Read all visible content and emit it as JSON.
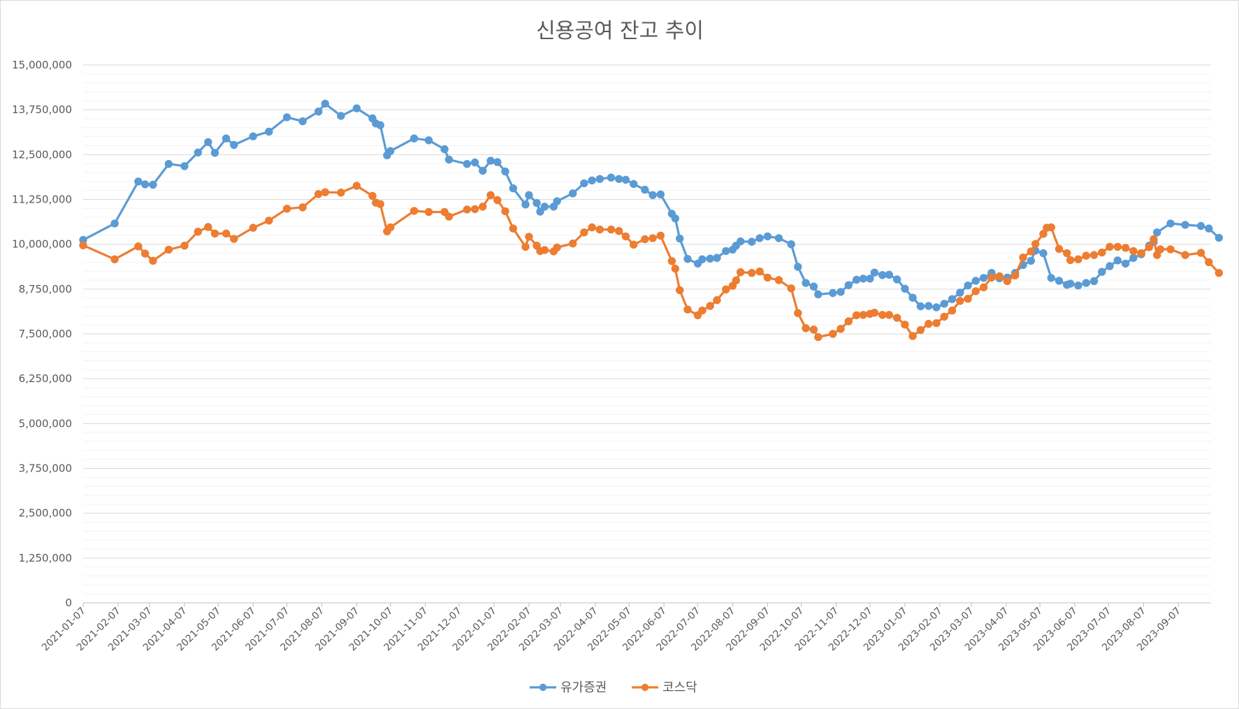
{
  "chart_data": {
    "type": "line",
    "title": "신용공여 잔고 추이",
    "xlabel": "",
    "ylabel": "",
    "ylim": [
      0,
      15000000
    ],
    "y_ticks": [
      0,
      1250000,
      2500000,
      3750000,
      5000000,
      6250000,
      7500000,
      8750000,
      10000000,
      11250000,
      12500000,
      13750000,
      15000000
    ],
    "y_tick_labels": [
      "0",
      "1,250,000",
      "2,500,000",
      "3,750,000",
      "5,000,000",
      "6,250,000",
      "7,500,000",
      "8,750,000",
      "10,000,000",
      "11,250,000",
      "12,500,000",
      "13,750,000",
      "15,000,000"
    ],
    "x_range": [
      "2021-01-07",
      "2023-10-06"
    ],
    "x_tick_labels": [
      "2021-01-07",
      "2021-02-07",
      "2021-03-07",
      "2021-04-07",
      "2021-05-07",
      "2021-06-07",
      "2021-07-07",
      "2021-08-07",
      "2021-09-07",
      "2021-10-07",
      "2021-11-07",
      "2021-12-07",
      "2022-01-07",
      "2022-02-07",
      "2022-03-07",
      "2022-04-07",
      "2022-05-07",
      "2022-06-07",
      "2022-07-07",
      "2022-08-07",
      "2022-09-07",
      "2022-10-07",
      "2022-11-07",
      "2022-12-07",
      "2023-01-07",
      "2023-02-07",
      "2023-03-07",
      "2023-04-07",
      "2023-05-07",
      "2023-06-07",
      "2023-07-07",
      "2023-08-07",
      "2023-09-07"
    ],
    "grid": "horizontal",
    "legend_position": "bottom",
    "series": [
      {
        "name": "유가증권",
        "color": "#5b9bd5",
        "points": [
          [
            "2021-01-07",
            10120000
          ],
          [
            "2021-02-04",
            10580000
          ],
          [
            "2021-02-25",
            11750000
          ],
          [
            "2021-03-03",
            11670000
          ],
          [
            "2021-03-10",
            11660000
          ],
          [
            "2021-03-24",
            12240000
          ],
          [
            "2021-04-07",
            12180000
          ],
          [
            "2021-04-19",
            12560000
          ],
          [
            "2021-04-28",
            12850000
          ],
          [
            "2021-05-04",
            12550000
          ],
          [
            "2021-05-14",
            12950000
          ],
          [
            "2021-05-21",
            12770000
          ],
          [
            "2021-06-07",
            13010000
          ],
          [
            "2021-06-21",
            13140000
          ],
          [
            "2021-07-07",
            13540000
          ],
          [
            "2021-07-21",
            13430000
          ],
          [
            "2021-08-04",
            13700000
          ],
          [
            "2021-08-10",
            13920000
          ],
          [
            "2021-08-24",
            13580000
          ],
          [
            "2021-09-07",
            13790000
          ],
          [
            "2021-09-21",
            13510000
          ],
          [
            "2021-09-24",
            13370000
          ],
          [
            "2021-09-28",
            13320000
          ],
          [
            "2021-10-04",
            12480000
          ],
          [
            "2021-10-07",
            12600000
          ],
          [
            "2021-10-28",
            12950000
          ],
          [
            "2021-11-10",
            12900000
          ],
          [
            "2021-11-24",
            12650000
          ],
          [
            "2021-11-28",
            12360000
          ],
          [
            "2021-12-14",
            12240000
          ],
          [
            "2021-12-21",
            12280000
          ],
          [
            "2021-12-28",
            12050000
          ],
          [
            "2022-01-04",
            12330000
          ],
          [
            "2022-01-10",
            12290000
          ],
          [
            "2022-01-17",
            12030000
          ],
          [
            "2022-01-24",
            11560000
          ],
          [
            "2022-02-04",
            11110000
          ],
          [
            "2022-02-07",
            11370000
          ],
          [
            "2022-02-14",
            11150000
          ],
          [
            "2022-02-17",
            10910000
          ],
          [
            "2022-02-21",
            11050000
          ],
          [
            "2022-03-01",
            11050000
          ],
          [
            "2022-03-04",
            11200000
          ],
          [
            "2022-03-18",
            11420000
          ],
          [
            "2022-03-28",
            11700000
          ],
          [
            "2022-04-04",
            11780000
          ],
          [
            "2022-04-11",
            11820000
          ],
          [
            "2022-04-21",
            11860000
          ],
          [
            "2022-04-28",
            11820000
          ],
          [
            "2022-05-04",
            11800000
          ],
          [
            "2022-05-11",
            11680000
          ],
          [
            "2022-05-21",
            11520000
          ],
          [
            "2022-05-28",
            11370000
          ],
          [
            "2022-06-04",
            11390000
          ],
          [
            "2022-06-14",
            10850000
          ],
          [
            "2022-06-17",
            10720000
          ],
          [
            "2022-06-21",
            10160000
          ],
          [
            "2022-06-28",
            9590000
          ],
          [
            "2022-07-07",
            9460000
          ],
          [
            "2022-07-11",
            9580000
          ],
          [
            "2022-07-18",
            9600000
          ],
          [
            "2022-07-24",
            9620000
          ],
          [
            "2022-08-01",
            9810000
          ],
          [
            "2022-08-07",
            9850000
          ],
          [
            "2022-08-10",
            9960000
          ],
          [
            "2022-08-14",
            10080000
          ],
          [
            "2022-08-24",
            10070000
          ],
          [
            "2022-08-31",
            10170000
          ],
          [
            "2022-09-07",
            10220000
          ],
          [
            "2022-09-17",
            10170000
          ],
          [
            "2022-09-28",
            10000000
          ],
          [
            "2022-10-04",
            9370000
          ],
          [
            "2022-10-11",
            8920000
          ],
          [
            "2022-10-18",
            8820000
          ],
          [
            "2022-10-22",
            8600000
          ],
          [
            "2022-11-04",
            8640000
          ],
          [
            "2022-11-11",
            8670000
          ],
          [
            "2022-11-18",
            8860000
          ],
          [
            "2022-11-25",
            9010000
          ],
          [
            "2022-12-01",
            9040000
          ],
          [
            "2022-12-07",
            9040000
          ],
          [
            "2022-12-11",
            9210000
          ],
          [
            "2022-12-18",
            9140000
          ],
          [
            "2022-12-24",
            9150000
          ],
          [
            "2022-12-31",
            9020000
          ],
          [
            "2023-01-07",
            8760000
          ],
          [
            "2023-01-14",
            8510000
          ],
          [
            "2023-01-21",
            8270000
          ],
          [
            "2023-01-28",
            8280000
          ],
          [
            "2023-02-04",
            8240000
          ],
          [
            "2023-02-11",
            8340000
          ],
          [
            "2023-02-18",
            8470000
          ],
          [
            "2023-02-25",
            8650000
          ],
          [
            "2023-03-04",
            8850000
          ],
          [
            "2023-03-11",
            8980000
          ],
          [
            "2023-03-18",
            9060000
          ],
          [
            "2023-03-25",
            9200000
          ],
          [
            "2023-04-01",
            9050000
          ],
          [
            "2023-04-08",
            9070000
          ],
          [
            "2023-04-15",
            9200000
          ],
          [
            "2023-04-22",
            9420000
          ],
          [
            "2023-04-29",
            9540000
          ],
          [
            "2023-05-03",
            9820000
          ],
          [
            "2023-05-10",
            9750000
          ],
          [
            "2023-05-17",
            9060000
          ],
          [
            "2023-05-24",
            8980000
          ],
          [
            "2023-05-31",
            8870000
          ],
          [
            "2023-06-03",
            8900000
          ],
          [
            "2023-06-10",
            8850000
          ],
          [
            "2023-06-17",
            8920000
          ],
          [
            "2023-06-24",
            8970000
          ],
          [
            "2023-07-01",
            9230000
          ],
          [
            "2023-07-08",
            9390000
          ],
          [
            "2023-07-15",
            9550000
          ],
          [
            "2023-07-22",
            9460000
          ],
          [
            "2023-07-29",
            9620000
          ],
          [
            "2023-08-05",
            9720000
          ],
          [
            "2023-08-12",
            9960000
          ],
          [
            "2023-08-16",
            10060000
          ],
          [
            "2023-08-19",
            10330000
          ],
          [
            "2023-08-31",
            10580000
          ],
          [
            "2023-09-13",
            10540000
          ],
          [
            "2023-09-27",
            10510000
          ],
          [
            "2023-10-04",
            10440000
          ],
          [
            "2023-10-13",
            10180000
          ]
        ]
      },
      {
        "name": "코스닥",
        "color": "#ed7d31",
        "points": [
          [
            "2021-01-07",
            9970000
          ],
          [
            "2021-02-04",
            9580000
          ],
          [
            "2021-02-25",
            9940000
          ],
          [
            "2021-03-03",
            9740000
          ],
          [
            "2021-03-10",
            9540000
          ],
          [
            "2021-03-24",
            9850000
          ],
          [
            "2021-04-07",
            9960000
          ],
          [
            "2021-04-19",
            10350000
          ],
          [
            "2021-04-28",
            10480000
          ],
          [
            "2021-05-04",
            10300000
          ],
          [
            "2021-05-14",
            10300000
          ],
          [
            "2021-05-21",
            10150000
          ],
          [
            "2021-06-07",
            10460000
          ],
          [
            "2021-06-21",
            10660000
          ],
          [
            "2021-07-07",
            10990000
          ],
          [
            "2021-07-21",
            11030000
          ],
          [
            "2021-08-04",
            11400000
          ],
          [
            "2021-08-10",
            11450000
          ],
          [
            "2021-08-24",
            11440000
          ],
          [
            "2021-09-07",
            11630000
          ],
          [
            "2021-09-21",
            11350000
          ],
          [
            "2021-09-24",
            11160000
          ],
          [
            "2021-09-28",
            11120000
          ],
          [
            "2021-10-04",
            10360000
          ],
          [
            "2021-10-07",
            10470000
          ],
          [
            "2021-10-28",
            10930000
          ],
          [
            "2021-11-10",
            10900000
          ],
          [
            "2021-11-24",
            10900000
          ],
          [
            "2021-11-28",
            10770000
          ],
          [
            "2021-12-14",
            10970000
          ],
          [
            "2021-12-21",
            10980000
          ],
          [
            "2021-12-28",
            11050000
          ],
          [
            "2022-01-04",
            11370000
          ],
          [
            "2022-01-10",
            11230000
          ],
          [
            "2022-01-17",
            10920000
          ],
          [
            "2022-01-24",
            10440000
          ],
          [
            "2022-02-04",
            9930000
          ],
          [
            "2022-02-07",
            10210000
          ],
          [
            "2022-02-14",
            9960000
          ],
          [
            "2022-02-17",
            9810000
          ],
          [
            "2022-02-21",
            9840000
          ],
          [
            "2022-03-01",
            9800000
          ],
          [
            "2022-03-04",
            9910000
          ],
          [
            "2022-03-18",
            10020000
          ],
          [
            "2022-03-28",
            10330000
          ],
          [
            "2022-04-04",
            10470000
          ],
          [
            "2022-04-11",
            10410000
          ],
          [
            "2022-04-21",
            10410000
          ],
          [
            "2022-04-28",
            10370000
          ],
          [
            "2022-05-04",
            10220000
          ],
          [
            "2022-05-11",
            9990000
          ],
          [
            "2022-05-21",
            10140000
          ],
          [
            "2022-05-28",
            10170000
          ],
          [
            "2022-06-04",
            10240000
          ],
          [
            "2022-06-14",
            9530000
          ],
          [
            "2022-06-17",
            9320000
          ],
          [
            "2022-06-21",
            8720000
          ],
          [
            "2022-06-28",
            8180000
          ],
          [
            "2022-07-07",
            8020000
          ],
          [
            "2022-07-11",
            8150000
          ],
          [
            "2022-07-18",
            8280000
          ],
          [
            "2022-07-24",
            8440000
          ],
          [
            "2022-08-01",
            8740000
          ],
          [
            "2022-08-07",
            8840000
          ],
          [
            "2022-08-10",
            8990000
          ],
          [
            "2022-08-14",
            9220000
          ],
          [
            "2022-08-24",
            9200000
          ],
          [
            "2022-08-31",
            9240000
          ],
          [
            "2022-09-07",
            9070000
          ],
          [
            "2022-09-17",
            9000000
          ],
          [
            "2022-09-28",
            8770000
          ],
          [
            "2022-10-04",
            8080000
          ],
          [
            "2022-10-11",
            7660000
          ],
          [
            "2022-10-18",
            7620000
          ],
          [
            "2022-10-22",
            7410000
          ],
          [
            "2022-11-04",
            7500000
          ],
          [
            "2022-11-11",
            7640000
          ],
          [
            "2022-11-18",
            7850000
          ],
          [
            "2022-11-25",
            8020000
          ],
          [
            "2022-12-01",
            8030000
          ],
          [
            "2022-12-07",
            8060000
          ],
          [
            "2022-12-11",
            8090000
          ],
          [
            "2022-12-18",
            8030000
          ],
          [
            "2022-12-24",
            8030000
          ],
          [
            "2022-12-31",
            7950000
          ],
          [
            "2023-01-07",
            7760000
          ],
          [
            "2023-01-14",
            7440000
          ],
          [
            "2023-01-21",
            7610000
          ],
          [
            "2023-01-28",
            7780000
          ],
          [
            "2023-02-04",
            7800000
          ],
          [
            "2023-02-11",
            7980000
          ],
          [
            "2023-02-18",
            8150000
          ],
          [
            "2023-02-25",
            8420000
          ],
          [
            "2023-03-04",
            8480000
          ],
          [
            "2023-03-11",
            8690000
          ],
          [
            "2023-03-18",
            8800000
          ],
          [
            "2023-03-25",
            9070000
          ],
          [
            "2023-04-01",
            9110000
          ],
          [
            "2023-04-08",
            8970000
          ],
          [
            "2023-04-15",
            9130000
          ],
          [
            "2023-04-22",
            9630000
          ],
          [
            "2023-04-29",
            9800000
          ],
          [
            "2023-05-03",
            10010000
          ],
          [
            "2023-05-10",
            10290000
          ],
          [
            "2023-05-13",
            10460000
          ],
          [
            "2023-05-17",
            10470000
          ],
          [
            "2023-05-24",
            9870000
          ],
          [
            "2023-05-31",
            9750000
          ],
          [
            "2023-06-03",
            9560000
          ],
          [
            "2023-06-10",
            9580000
          ],
          [
            "2023-06-17",
            9680000
          ],
          [
            "2023-06-24",
            9700000
          ],
          [
            "2023-07-01",
            9770000
          ],
          [
            "2023-07-08",
            9930000
          ],
          [
            "2023-07-15",
            9930000
          ],
          [
            "2023-07-22",
            9900000
          ],
          [
            "2023-07-29",
            9810000
          ],
          [
            "2023-08-05",
            9750000
          ],
          [
            "2023-08-12",
            9920000
          ],
          [
            "2023-08-16",
            10140000
          ],
          [
            "2023-08-19",
            9700000
          ],
          [
            "2023-08-22",
            9860000
          ],
          [
            "2023-08-31",
            9860000
          ],
          [
            "2023-09-13",
            9700000
          ],
          [
            "2023-09-27",
            9760000
          ],
          [
            "2023-10-04",
            9500000
          ],
          [
            "2023-10-13",
            9200000
          ]
        ]
      }
    ]
  }
}
